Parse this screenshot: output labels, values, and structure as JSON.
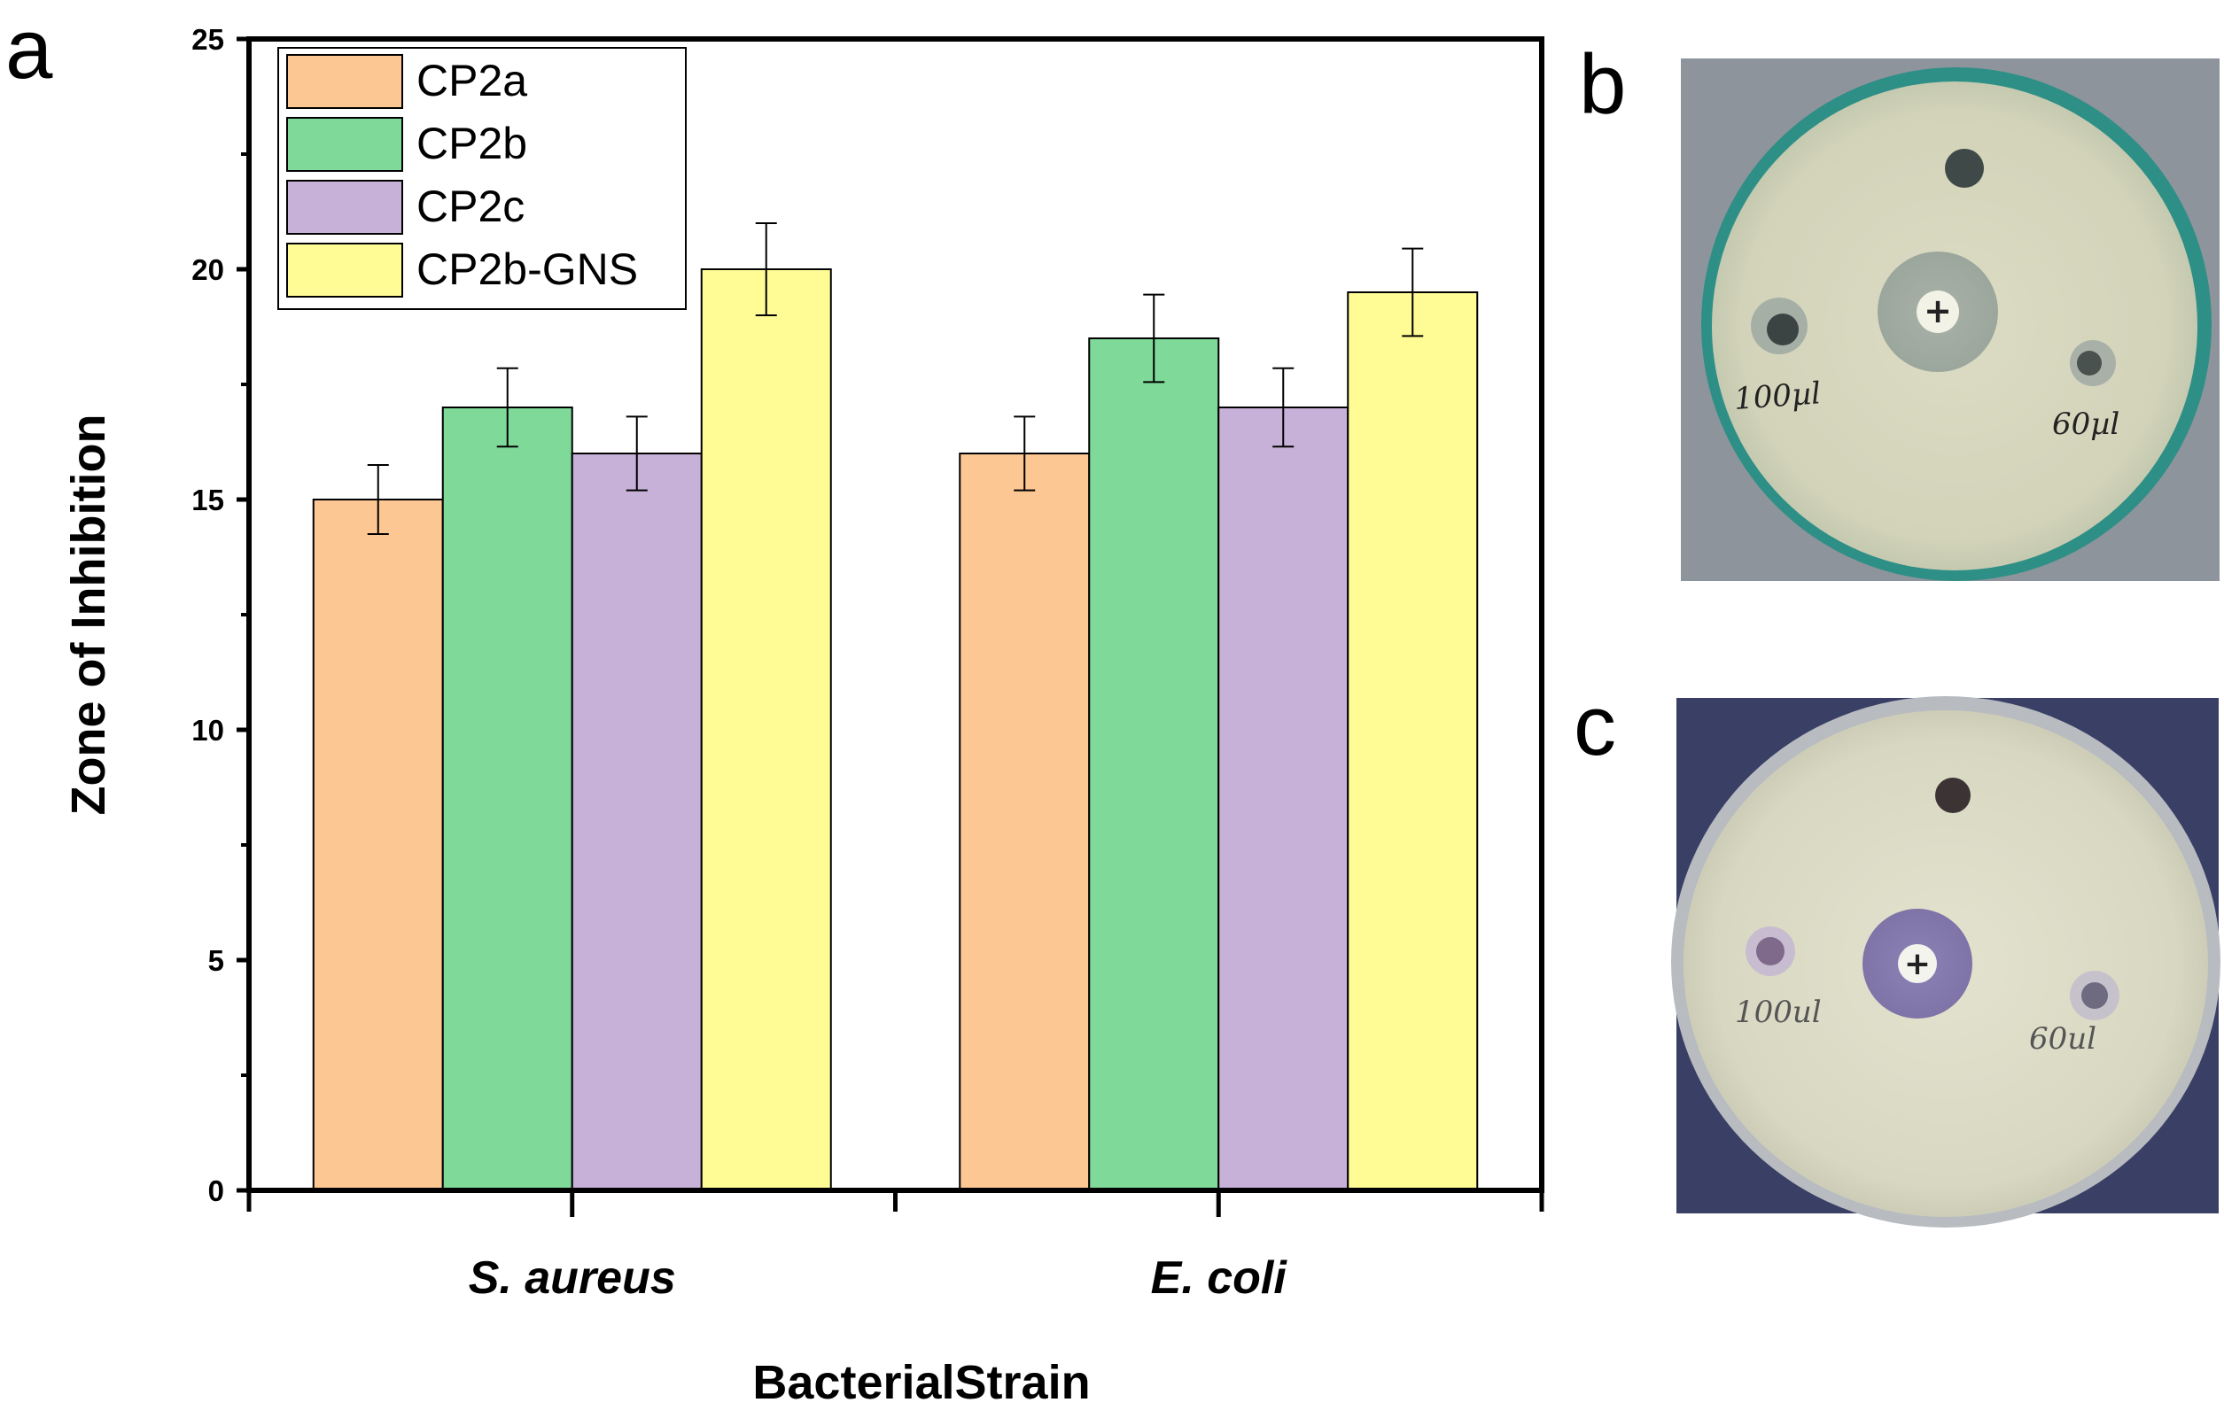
{
  "panels": {
    "a": "a",
    "b": "b",
    "c": "c"
  },
  "chart_data": {
    "type": "bar",
    "title": "",
    "xlabel": "BacterialStrain",
    "ylabel": "Zone of Inhibition",
    "categories": [
      "S. aureus",
      "E. coli"
    ],
    "series": [
      {
        "name": "CP2a",
        "values": [
          15.0,
          16.0
        ],
        "errors": [
          0.75,
          0.8
        ],
        "color": "#FDC793"
      },
      {
        "name": "CP2b",
        "values": [
          17.0,
          18.5
        ],
        "errors": [
          0.85,
          0.95
        ],
        "color": "#7FD998"
      },
      {
        "name": "CP2c",
        "values": [
          16.0,
          17.0
        ],
        "errors": [
          0.8,
          0.85
        ],
        "color": "#C7B1D8"
      },
      {
        "name": "CP2b-GNS",
        "values": [
          20.0,
          19.5
        ],
        "errors": [
          1.0,
          0.95
        ],
        "color": "#FFFC96"
      }
    ],
    "ylim": [
      0,
      25
    ],
    "yticks": [
      0,
      5,
      10,
      15,
      20,
      25
    ],
    "grid": false,
    "legend_position": "top-left"
  },
  "photos": {
    "b": {
      "left_label": "100µl",
      "right_label": "60µl",
      "tint": "#D6D6BC"
    },
    "c": {
      "left_label": "100ul",
      "right_label": "60ul",
      "tint": "#DCDCC8"
    }
  }
}
